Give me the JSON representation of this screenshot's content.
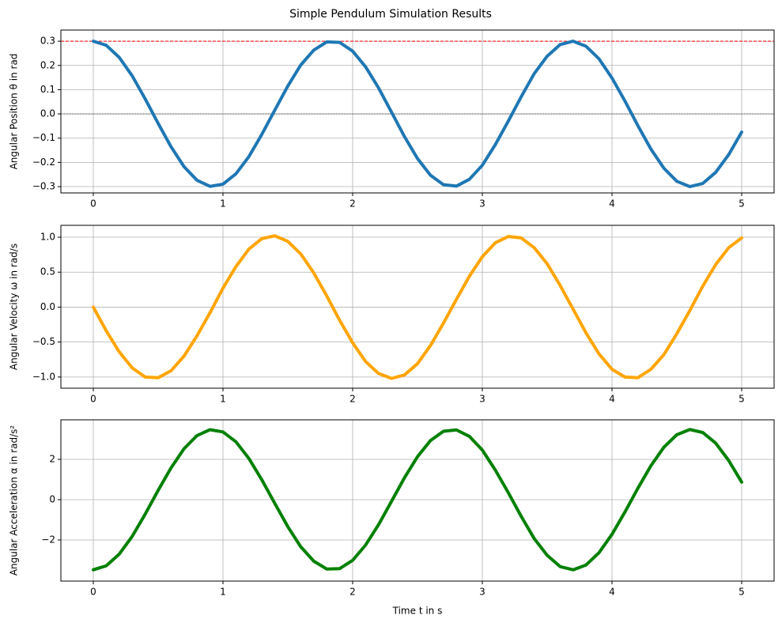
{
  "title": "Simple Pendulum Simulation Results",
  "chart_data": [
    {
      "type": "line",
      "ylabel": "Angular Position θ in rad",
      "x": [
        0,
        0.1,
        0.2,
        0.3,
        0.4,
        0.5,
        0.6,
        0.7,
        0.8,
        0.9,
        1,
        1.1,
        1.2,
        1.3,
        1.4,
        1.5,
        1.6,
        1.7,
        1.8,
        1.9,
        2,
        2.1,
        2.2,
        2.3,
        2.4,
        2.5,
        2.6,
        2.7,
        2.8,
        2.9,
        3,
        3.1,
        3.2,
        3.3,
        3.4,
        3.5,
        3.6,
        3.7,
        3.8,
        3.9,
        4,
        4.1,
        4.2,
        4.3,
        4.4,
        4.5,
        4.6,
        4.7,
        4.8,
        4.9,
        5
      ],
      "series": [
        {
          "color": "#1f77b4",
          "values": [
            0.3,
            0.283,
            0.233,
            0.157,
            0.062,
            -0.039,
            -0.136,
            -0.218,
            -0.274,
            -0.299,
            -0.29,
            -0.247,
            -0.176,
            -0.084,
            0.016,
            0.115,
            0.202,
            0.263,
            0.297,
            0.295,
            0.259,
            0.194,
            0.107,
            0.007,
            -0.094,
            -0.184,
            -0.253,
            -0.292,
            -0.298,
            -0.27,
            -0.212,
            -0.127,
            -0.03,
            0.071,
            0.166,
            0.238,
            0.286,
            0.3,
            0.279,
            0.227,
            0.148,
            0.053,
            -0.049,
            -0.145,
            -0.224,
            -0.278,
            -0.3,
            -0.287,
            -0.241,
            -0.168,
            -0.075
          ]
        }
      ],
      "hlines": [
        {
          "y": 0.3,
          "color": "#ff0000",
          "style": "dashed"
        },
        {
          "y": 0,
          "color": "#000000",
          "style": "dotted"
        }
      ],
      "xlim": [
        -0.25,
        5.25
      ],
      "xticks": [
        0,
        1,
        2,
        3,
        4,
        5
      ],
      "ylim": [
        -0.326,
        0.346
      ],
      "yticks": [
        {
          "value": -0.3,
          "label": "−0.3"
        },
        {
          "value": -0.2,
          "label": "−0.2"
        },
        {
          "value": -0.1,
          "label": "−0.1"
        },
        {
          "value": 0,
          "label": "0.0"
        },
        0.1,
        0.2,
        0.3
      ],
      "grid": true
    },
    {
      "type": "line",
      "ylabel": "Angular Velocity ω in rad/s",
      "x": [
        0,
        0.1,
        0.2,
        0.3,
        0.4,
        0.5,
        0.6,
        0.7,
        0.8,
        0.9,
        1,
        1.1,
        1.2,
        1.3,
        1.4,
        1.5,
        1.6,
        1.7,
        1.8,
        1.9,
        2,
        2.1,
        2.2,
        2.3,
        2.4,
        2.5,
        2.6,
        2.7,
        2.8,
        2.9,
        3,
        3.1,
        3.2,
        3.3,
        3.4,
        3.5,
        3.6,
        3.7,
        3.8,
        3.9,
        4,
        4.1,
        4.2,
        4.3,
        4.4,
        4.5,
        4.6,
        4.7,
        4.8,
        4.9,
        5
      ],
      "series": [
        {
          "color": "#ffa500",
          "values": [
            0,
            -0.34,
            -0.64,
            -0.87,
            -1.0,
            -1.01,
            -0.91,
            -0.7,
            -0.41,
            -0.08,
            0.27,
            0.58,
            0.83,
            0.98,
            1.02,
            0.94,
            0.76,
            0.49,
            0.16,
            -0.19,
            -0.51,
            -0.78,
            -0.95,
            -1.02,
            -0.97,
            -0.81,
            -0.55,
            -0.23,
            0.11,
            0.44,
            0.72,
            0.92,
            1.01,
            0.99,
            0.85,
            0.62,
            0.31,
            -0.03,
            -0.37,
            -0.67,
            -0.89,
            -1.0,
            -1.01,
            -0.89,
            -0.68,
            -0.38,
            -0.05,
            0.3,
            0.61,
            0.85,
            0.99
          ]
        }
      ],
      "xlim": [
        -0.25,
        5.25
      ],
      "xticks": [
        0,
        1,
        2,
        3,
        4,
        5
      ],
      "ylim": [
        -1.16,
        1.17
      ],
      "yticks": [
        {
          "value": -1,
          "label": "−1.0"
        },
        {
          "value": -0.5,
          "label": "−0.5"
        },
        {
          "value": 0,
          "label": "0.0"
        },
        0.5,
        {
          "value": 1,
          "label": "1.0"
        }
      ],
      "grid": true
    },
    {
      "type": "line",
      "ylabel": "Angular Acceleration α in rad/s²",
      "xlabel": "Time t in s",
      "x": [
        0,
        0.1,
        0.2,
        0.3,
        0.4,
        0.5,
        0.6,
        0.7,
        0.8,
        0.9,
        1,
        1.1,
        1.2,
        1.3,
        1.4,
        1.5,
        1.6,
        1.7,
        1.8,
        1.9,
        2,
        2.1,
        2.2,
        2.3,
        2.4,
        2.5,
        2.6,
        2.7,
        2.8,
        2.9,
        3,
        3.1,
        3.2,
        3.3,
        3.4,
        3.5,
        3.6,
        3.7,
        3.8,
        3.9,
        4,
        4.1,
        4.2,
        4.3,
        4.4,
        4.5,
        4.6,
        4.7,
        4.8,
        4.9,
        5
      ],
      "series": [
        {
          "color": "#008000",
          "values": [
            -3.48,
            -3.28,
            -2.7,
            -1.82,
            -0.72,
            0.46,
            1.58,
            2.53,
            3.18,
            3.47,
            3.36,
            2.87,
            2.04,
            0.98,
            -0.19,
            -1.34,
            -2.34,
            -3.05,
            -3.44,
            -3.42,
            -3.01,
            -2.25,
            -1.24,
            -0.08,
            1.09,
            2.13,
            2.93,
            3.39,
            3.46,
            3.14,
            2.46,
            1.47,
            0.35,
            -0.83,
            -1.93,
            -2.76,
            -3.32,
            -3.48,
            -3.24,
            -2.63,
            -1.72,
            -0.61,
            0.57,
            1.68,
            2.6,
            3.22,
            3.48,
            3.33,
            2.8,
            1.94,
            0.87
          ]
        }
      ],
      "xlim": [
        -0.25,
        5.25
      ],
      "xticks": [
        0,
        1,
        2,
        3,
        4,
        5
      ],
      "ylim": [
        -4.04,
        3.96
      ],
      "yticks": [
        {
          "value": -2,
          "label": "−2"
        },
        0,
        2
      ],
      "grid": true
    }
  ]
}
